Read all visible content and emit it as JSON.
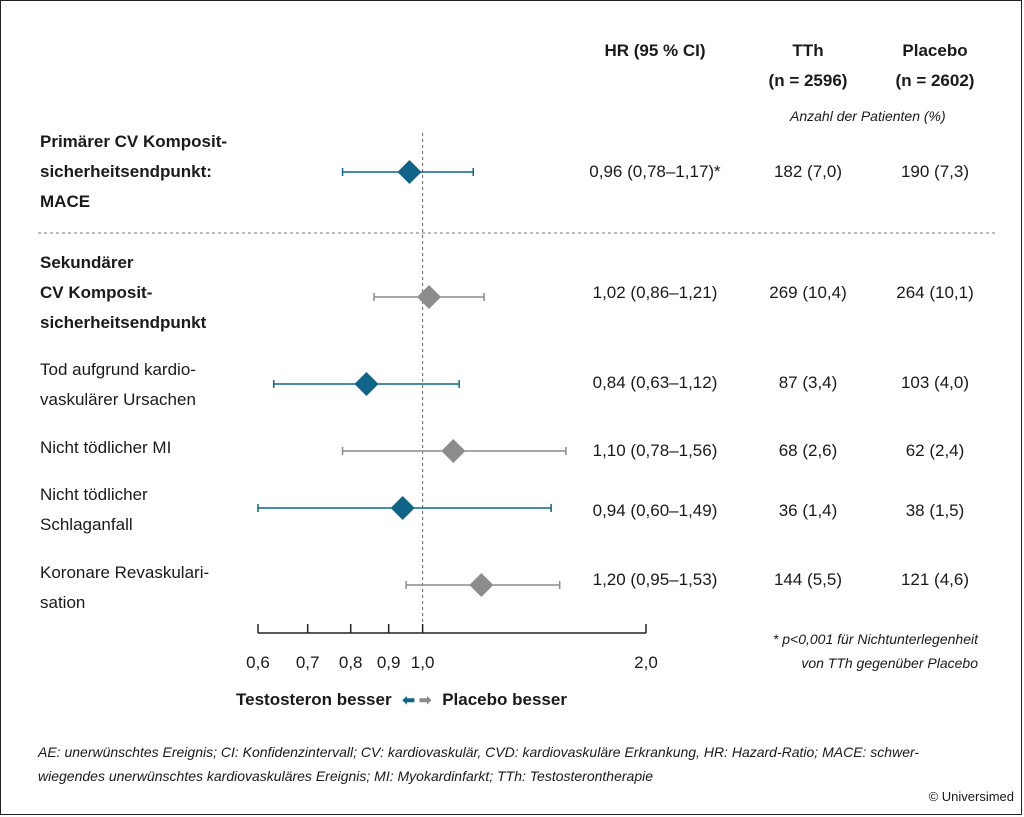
{
  "header": {
    "hr": "HR (95 % CI)",
    "tth_line1": "TTh",
    "tth_line2": "(n = 2596)",
    "placebo_line1": "Placebo",
    "placebo_line2": "(n = 2602)",
    "subheader": "Anzahl der Patienten (%)"
  },
  "rows": [
    {
      "label": "Primärer CV Komposit-\nsicherheitsendpunkt:\nMACE",
      "bold": true,
      "hr_text": "0,96 (0,78–1,17)*",
      "tth": "182 (7,0)",
      "placebo": "190 (7,3)"
    },
    {
      "label": "Sekundärer\nCV Komposit-\nsicherheitsendpunkt",
      "bold": true,
      "hr_text": "1,02 (0,86–1,21)",
      "tth": "269 (10,4)",
      "placebo": "264 (10,1)"
    },
    {
      "label": "Tod aufgrund kardio-\nvaskulärer Ursachen",
      "bold": false,
      "hr_text": "0,84 (0,63–1,12)",
      "tth": "87 (3,4)",
      "placebo": "103 (4,0)"
    },
    {
      "label": "Nicht tödlicher MI",
      "bold": false,
      "hr_text": "1,10 (0,78–1,56)",
      "tth": "68 (2,6)",
      "placebo": "62 (2,4)"
    },
    {
      "label": "Nicht tödlicher\nSchlaganfall",
      "bold": false,
      "hr_text": "0,94 (0,60–1,49)",
      "tth": "36 (1,4)",
      "placebo": "38 (1,5)"
    },
    {
      "label": "Koronare Revaskulari-\nsation",
      "bold": false,
      "hr_text": "1,20 (0,95–1,53)",
      "tth": "144 (5,5)",
      "placebo": "121 (4,6)"
    }
  ],
  "chart_data": {
    "type": "forest",
    "reference_line": 1.0,
    "x_scale": "log",
    "xlim": [
      0.6,
      2.0
    ],
    "x_ticks": [
      0.6,
      0.7,
      0.8,
      0.9,
      1.0,
      2.0
    ],
    "x_tick_labels": [
      "0,6",
      "0,7",
      "0,8",
      "0,9",
      "1,0",
      "2,0"
    ],
    "points": [
      {
        "hr": 0.96,
        "lo": 0.78,
        "hi": 1.17,
        "color": "#0f6487"
      },
      {
        "hr": 1.02,
        "lo": 0.86,
        "hi": 1.21,
        "color": "#8c8c8c"
      },
      {
        "hr": 0.84,
        "lo": 0.63,
        "hi": 1.12,
        "color": "#0f6487"
      },
      {
        "hr": 1.1,
        "lo": 0.78,
        "hi": 1.56,
        "color": "#8c8c8c"
      },
      {
        "hr": 0.94,
        "lo": 0.6,
        "hi": 1.49,
        "color": "#0f6487"
      },
      {
        "hr": 1.2,
        "lo": 0.95,
        "hi": 1.53,
        "color": "#8c8c8c"
      }
    ]
  },
  "colors": {
    "favours_tth": "#0f6487",
    "favours_placebo": "#8c8c8c"
  },
  "legend": {
    "left": "Testosteron besser",
    "right": "Placebo besser"
  },
  "footnote_star": "* p<0,001 für Nichtunterlegenheit\nvon TTh gegenüber Placebo",
  "footer": "AE: unerwünschtes Ereignis; CI: Konfidenzintervall; CV: kardiovaskulär, CVD: kardiovaskuläre Erkrankung, HR: Hazard-Ratio; MACE: schwer-\nwiegendes unerwünschtes kardiovaskuläres Ereignis; MI: Myokardinfarkt; TTh: Testosterontherapie",
  "copyright": "© Universimed"
}
